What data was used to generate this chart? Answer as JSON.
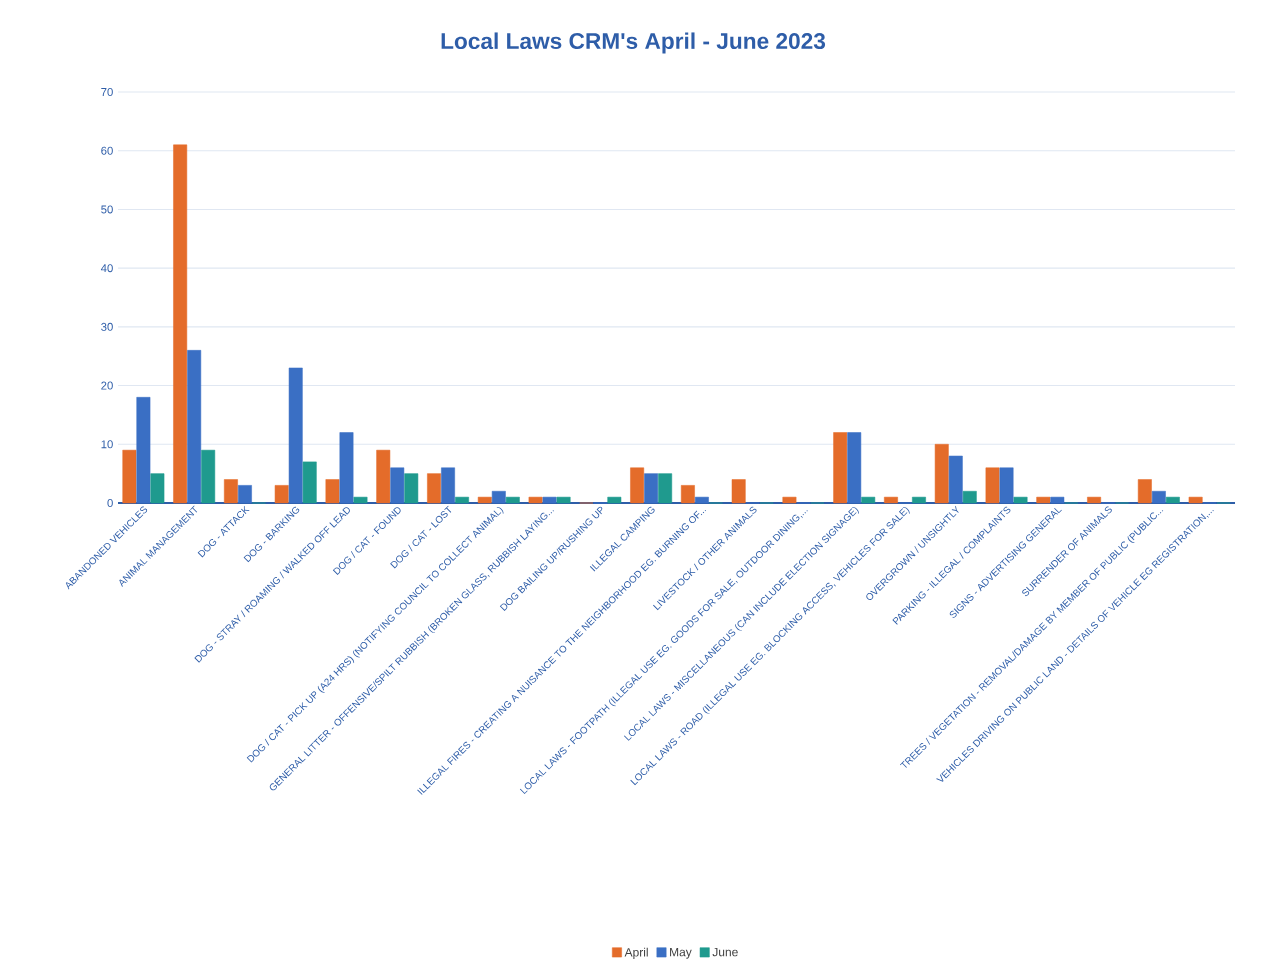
{
  "chart_data": {
    "type": "bar",
    "title": "Local Laws CRM's April - June 2023",
    "categories": [
      "ABANDONED VEHICLES",
      "ANIMAL MANAGEMENT",
      "DOG - ATTACK",
      "DOG - BARKING",
      "DOG - STRAY / ROAMING / WALKED OFF LEAD",
      "DOG / CAT - FOUND",
      "DOG / CAT - LOST",
      "DOG / CAT - PICK UP (A24 HRS) (NOTIFYING COUNCIL TO COLLECT ANIMAL)",
      "GENERAL LITTER - OFFENSIVE/SPILT RUBBISH (BROKEN GLASS, RUBBISH LAYING...",
      "DOG BAILING UP/RUSHING UP",
      "ILLEGAL CAMPING",
      "ILLEGAL FIRES - CREATING A NUISANCE TO THE NEIGHBORHOOD EG. BURNING OF...",
      "LIVESTOCK / OTHER ANIMALS",
      "LOCAL LAWS - FOOTPATH (ILLEGAL USE EG. GOODS FOR SALE, OUTDOOR DINING,...",
      "LOCAL LAWS - MISCELLANEOUS (CAN INCLUDE ELECTION SIGNAGE)",
      "LOCAL LAWS - ROAD (ILLEGAL USE EG. BLOCKING ACCESS, VEHICLES FOR SALE)",
      "OVERGROWN / UNSIGHTLY",
      "PARKING - ILLEGAL / COMPLAINTS",
      "SIGNS - ADVERTISING GENERAL",
      "SURRENDER OF ANIMALS",
      "TREES / VEGETATION - REMOVAL/DAMAGE BY MEMBER OF PUBLIC (PUBLIC...",
      "VEHICLES DRIVING ON PUBLIC LAND - DETAILS OF VEHICLE EG REGISTRATION,..."
    ],
    "series": [
      {
        "name": "April",
        "color": "#e46c2a",
        "values": [
          9,
          61,
          4,
          3,
          4,
          9,
          5,
          1,
          1,
          0,
          6,
          3,
          4,
          1,
          12,
          1,
          10,
          6,
          1,
          1,
          4,
          1
        ]
      },
      {
        "name": "May",
        "color": "#3a6fc4",
        "values": [
          18,
          26,
          3,
          23,
          12,
          6,
          6,
          2,
          1,
          0,
          5,
          1,
          0,
          0,
          12,
          0,
          8,
          6,
          1,
          0,
          2,
          0
        ]
      },
      {
        "name": "June",
        "color": "#1f9a8e",
        "values": [
          5,
          9,
          0,
          7,
          1,
          5,
          1,
          1,
          1,
          1,
          5,
          0,
          0,
          0,
          1,
          1,
          2,
          1,
          0,
          0,
          1,
          0
        ]
      }
    ],
    "ylim": [
      0,
      70
    ],
    "yticks": [
      0,
      10,
      20,
      30,
      40,
      50,
      60,
      70
    ],
    "grid": "y",
    "legend": "bottom"
  }
}
